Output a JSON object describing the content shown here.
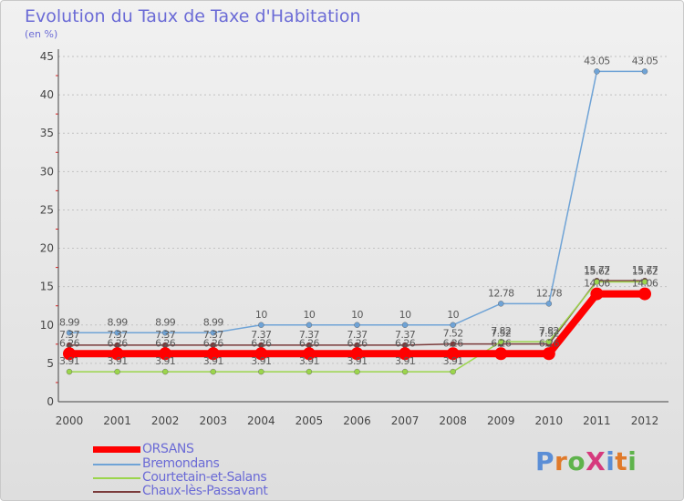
{
  "title": "Evolution du Taux de Taxe d'Habitation",
  "subtitle": "(en %)",
  "logo": {
    "text": "ProXiti",
    "letter_colors": [
      "#5b8ed6",
      "#e07a2a",
      "#5fb34c",
      "#d63a7d",
      "#5b8ed6",
      "#e07a2a",
      "#5fb34c"
    ]
  },
  "chart_data": {
    "type": "line",
    "title": "Evolution du Taux de Taxe d'Habitation",
    "ylabel": "(en %)",
    "xlabel": "",
    "x": [
      "2000",
      "2001",
      "2002",
      "2003",
      "2004",
      "2005",
      "2006",
      "2007",
      "2008",
      "2009",
      "2010",
      "2011",
      "2012"
    ],
    "ylim": [
      0,
      45
    ],
    "yticks": [
      0,
      5,
      10,
      15,
      20,
      25,
      30,
      35,
      40,
      45
    ],
    "grid": true,
    "legend": "bottom-left",
    "series": [
      {
        "name": "ORSANS",
        "color": "#ff0000",
        "values": [
          6.26,
          6.26,
          6.26,
          6.26,
          6.26,
          6.26,
          6.26,
          6.26,
          6.26,
          6.26,
          6.26,
          14.06,
          14.06
        ],
        "labels": [
          "6.26",
          "6.26",
          "6.26",
          "6.26",
          "6.26",
          "6.26",
          "6.26",
          "6.26",
          "6.26",
          "6.26",
          "6.26",
          "14.06",
          "14.06"
        ]
      },
      {
        "name": "Bremondans",
        "color": "#6fa3d6",
        "values": [
          8.99,
          8.99,
          8.99,
          8.99,
          10,
          10,
          10,
          10,
          10,
          12.78,
          12.78,
          43.05,
          43.05
        ],
        "labels": [
          "8.99",
          "8.99",
          "8.99",
          "8.99",
          "10",
          "10",
          "10",
          "10",
          "10",
          "12.78",
          "12.78",
          "43.05",
          "43.05"
        ]
      },
      {
        "name": "Courtetain-et-Salans",
        "color": "#9bd54c",
        "values": [
          3.91,
          3.91,
          3.91,
          3.91,
          3.91,
          3.91,
          3.91,
          3.91,
          3.91,
          7.82,
          7.82,
          15.62,
          15.62
        ],
        "labels": [
          "3.91",
          "3.91",
          "3.91",
          "3.91",
          "3.91",
          "3.91",
          "3.91",
          "3.91",
          "3.91",
          "7.82",
          "7.82",
          "15.62",
          "15.62"
        ]
      },
      {
        "name": "Chaux-lès-Passavant",
        "color": "#7a3b3b",
        "values": [
          7.37,
          7.37,
          7.37,
          7.37,
          7.37,
          7.37,
          7.37,
          7.37,
          7.52,
          7.52,
          7.52,
          15.77,
          15.77
        ],
        "labels": [
          "7.37",
          "7.37",
          "7.37",
          "7.37",
          "7.37",
          "7.37",
          "7.37",
          "7.37",
          "7.52",
          "7.52",
          "7.52",
          "15.77",
          "15.77"
        ]
      }
    ]
  }
}
